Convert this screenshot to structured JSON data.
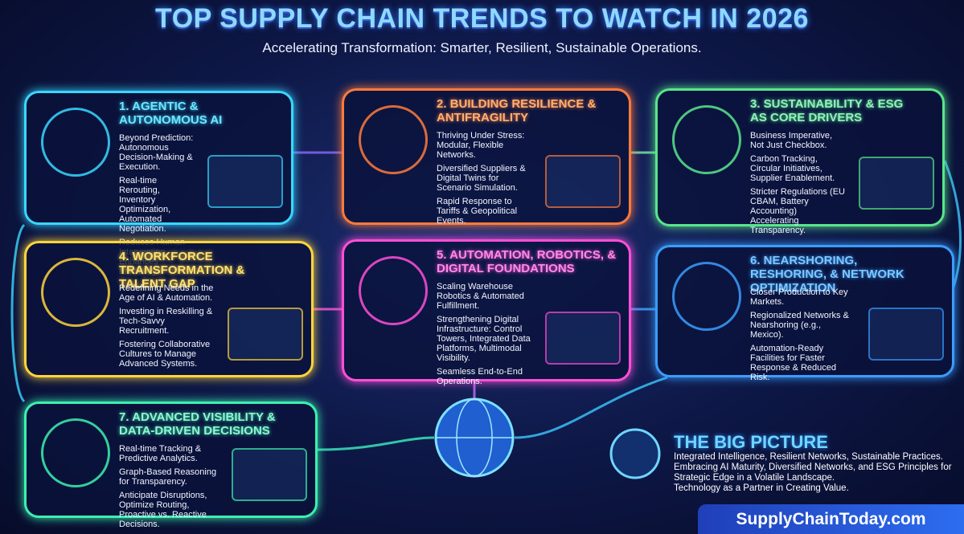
{
  "header": {
    "title": "TOP SUPPLY CHAIN TRENDS TO WATCH IN 2026",
    "subtitle": "Accelerating Transformation: Smarter, Resilient, Sustainable Operations."
  },
  "cards": [
    {
      "title": "1. AGENTIC & AUTONOMOUS AI",
      "paragraphs": [
        "Beyond Prediction: Autonomous Decision-Making & Execution.",
        "Real-time Rerouting, Inventory Optimization, Automated Negotiation.",
        "Reduces Human Intervention. Enhances Efficiency."
      ]
    },
    {
      "title": "2. BUILDING RESILIENCE & ANTIFRAGILITY",
      "paragraphs": [
        "Thriving Under Stress: Modular, Flexible Networks.",
        "Diversified Suppliers & Digital Twins for Scenario Simulation.",
        "Rapid Response to Tariffs & Geopolitical Events."
      ]
    },
    {
      "title": "3. SUSTAINABILITY & ESG AS CORE DRIVERS",
      "paragraphs": [
        "Business Imperative, Not Just Checkbox.",
        "Carbon Tracking, Circular Initiatives, Supplier Enablement.",
        "Stricter Regulations (EU CBAM, Battery Accounting) Accelerating Transparency."
      ]
    },
    {
      "title": "4. WORKFORCE TRANSFORMATION & TALENT GAP",
      "paragraphs": [
        "Redefining Needs in the Age of AI & Automation.",
        "Investing in Reskilling & Tech-Savvy Recruitment.",
        "Fostering Collaborative Cultures to Manage Advanced Systems."
      ]
    },
    {
      "title": "5. AUTOMATION, ROBOTICS, & DIGITAL FOUNDATIONS",
      "paragraphs": [
        "Scaling Warehouse Robotics & Automated Fulfillment.",
        "Strengthening Digital Infrastructure: Control Towers, Integrated Data Platforms, Multimodal Visibility.",
        "Seamless End-to-End Operations."
      ]
    },
    {
      "title": "6. NEARSHORING, RESHORING, & NETWORK OPTIMIZATION",
      "paragraphs": [
        "Closer Production to Key Markets.",
        "Regionalized Networks & Nearshoring (e.g., Mexico).",
        "Automation-Ready Facilities for Faster Response & Reduced Risk."
      ]
    },
    {
      "title": "7. ADVANCED VISIBILITY & DATA-DRIVEN DECISIONS",
      "paragraphs": [
        "Real-time Tracking & Predictive Analytics.",
        "Graph-Based Reasoning for Transparency.",
        "Anticipate Disruptions, Optimize Routing, Proactive vs. Reactive Decisions."
      ]
    }
  ],
  "big_picture": {
    "title": "THE BIG PICTURE",
    "paragraphs": [
      "Integrated Intelligence, Resilient Networks, Sustainable Practices.",
      "Embracing AI Maturity, Diversified Networks, and ESG Principles for Strategic Edge in a Volatile Landscape.",
      "Technology as a Partner in Creating Value."
    ]
  },
  "footer": {
    "site": "SupplyChainToday.com"
  }
}
